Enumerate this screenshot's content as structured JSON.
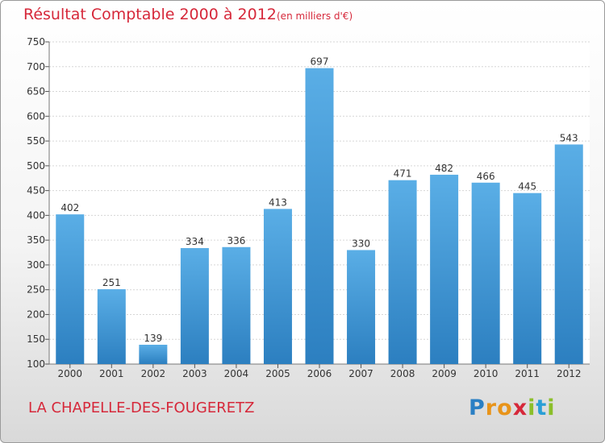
{
  "header": {
    "title": "Résultat Comptable 2000 à 2012",
    "subtitle": "(en milliers d'€)"
  },
  "footer": {
    "location": "LA CHAPELLE-DES-FOUGERETZ",
    "logo_text": "Proxiti"
  },
  "colors": {
    "accent": "#d6283a",
    "bar_top": "#5aaee6",
    "bar_bottom": "#2c7fc0"
  },
  "chart_data": {
    "type": "bar",
    "title": "Résultat Comptable 2000 à 2012",
    "subtitle": "(en milliers d'€)",
    "categories": [
      "2000",
      "2001",
      "2002",
      "2003",
      "2004",
      "2005",
      "2006",
      "2007",
      "2008",
      "2009",
      "2010",
      "2011",
      "2012"
    ],
    "values": [
      402,
      251,
      139,
      334,
      336,
      413,
      697,
      330,
      471,
      482,
      466,
      445,
      543
    ],
    "ylim": [
      100,
      750
    ],
    "yticks": [
      100,
      150,
      200,
      250,
      300,
      350,
      400,
      450,
      500,
      550,
      600,
      650,
      700,
      750
    ],
    "grid": true,
    "data_labels": true
  }
}
